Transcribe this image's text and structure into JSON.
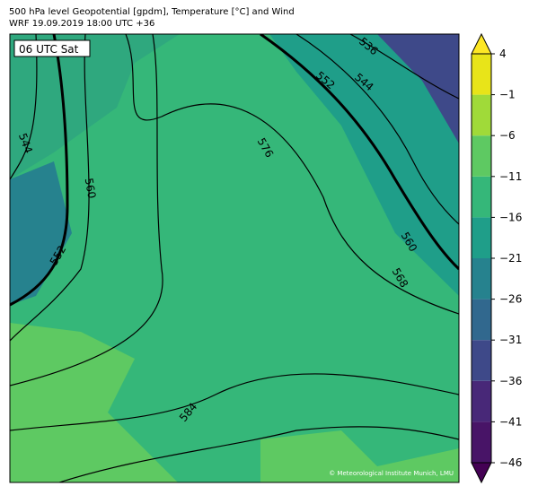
{
  "header": {
    "title": "500 hPa level Geopotential [gpdm], Temperature [°C] and Wind",
    "subtitle": "WRF 19.09.2019 18:00 UTC +36"
  },
  "map": {
    "time_label": "06 UTC Sat",
    "contour_labels": [
      "544",
      "560",
      "552",
      "536",
      "552",
      "544",
      "576",
      "560",
      "568",
      "584"
    ],
    "credit": "© Meteorological Institute Munich, LMU"
  },
  "colorbar": {
    "lim": [
      -46,
      4
    ],
    "ticks": [
      4,
      {
        "value": -1,
        "label": "−1"
      },
      {
        "value": -6,
        "label": "−6"
      },
      {
        "value": -11,
        "label": "−11"
      },
      {
        "value": -16,
        "label": "−16"
      },
      {
        "value": -21,
        "label": "−21"
      },
      {
        "value": -26,
        "label": "−26"
      },
      {
        "value": -31,
        "label": "−31"
      },
      {
        "value": -36,
        "label": "−36"
      },
      {
        "value": -41,
        "label": "−41"
      },
      {
        "value": -46,
        "label": "−46"
      }
    ],
    "colors": [
      "#481467",
      "#482878",
      "#3e4989",
      "#31688e",
      "#26828e",
      "#1f9e89",
      "#35b779",
      "#5ec962",
      "#a0da39",
      "#e8e419"
    ],
    "extend_colors": [
      "#440154",
      "#fde725"
    ]
  }
}
